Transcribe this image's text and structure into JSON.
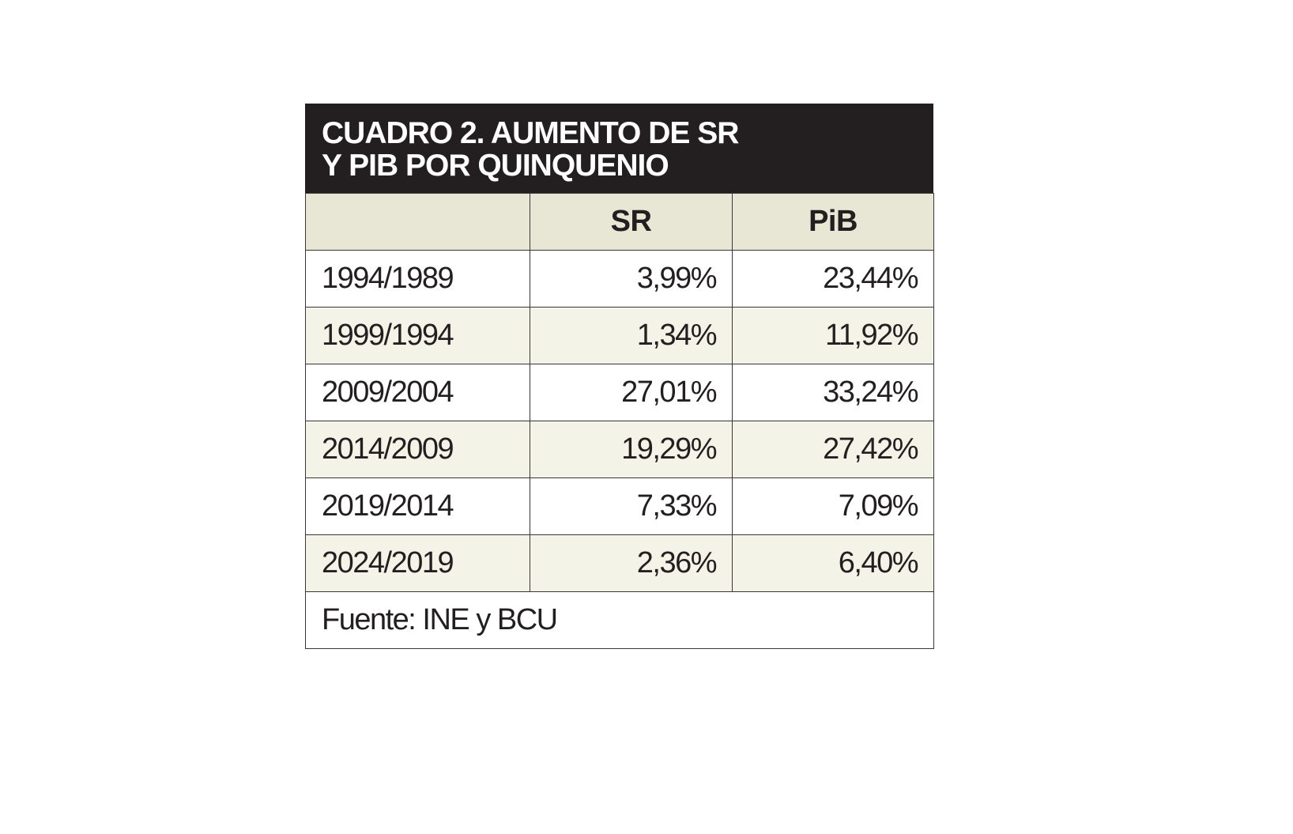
{
  "chart_data": {
    "type": "table",
    "title_lines": [
      "CUADRO 2. AUMENTO DE SR",
      "Y PIB POR QUINQUENIO"
    ],
    "columns": [
      "",
      "SR",
      "PiB"
    ],
    "rows": [
      {
        "period": "1994/1989",
        "sr": "3,99%",
        "pib": "23,44%"
      },
      {
        "period": "1999/1994",
        "sr": "1,34%",
        "pib": "11,92%"
      },
      {
        "period": "2009/2004",
        "sr": "27,01%",
        "pib": "33,24%"
      },
      {
        "period": "2014/2009",
        "sr": "19,29%",
        "pib": "27,42%"
      },
      {
        "period": "2019/2014",
        "sr": "7,33%",
        "pib": "7,09%"
      },
      {
        "period": "2024/2019",
        "sr": "2,36%",
        "pib": "6,40%"
      }
    ],
    "source": "Fuente: INE y BCU",
    "colors": {
      "title_background": "#231f20",
      "header_background": "#e8e6d4",
      "stripe_background": "#f3f3e8",
      "border": "#3a3637"
    }
  }
}
